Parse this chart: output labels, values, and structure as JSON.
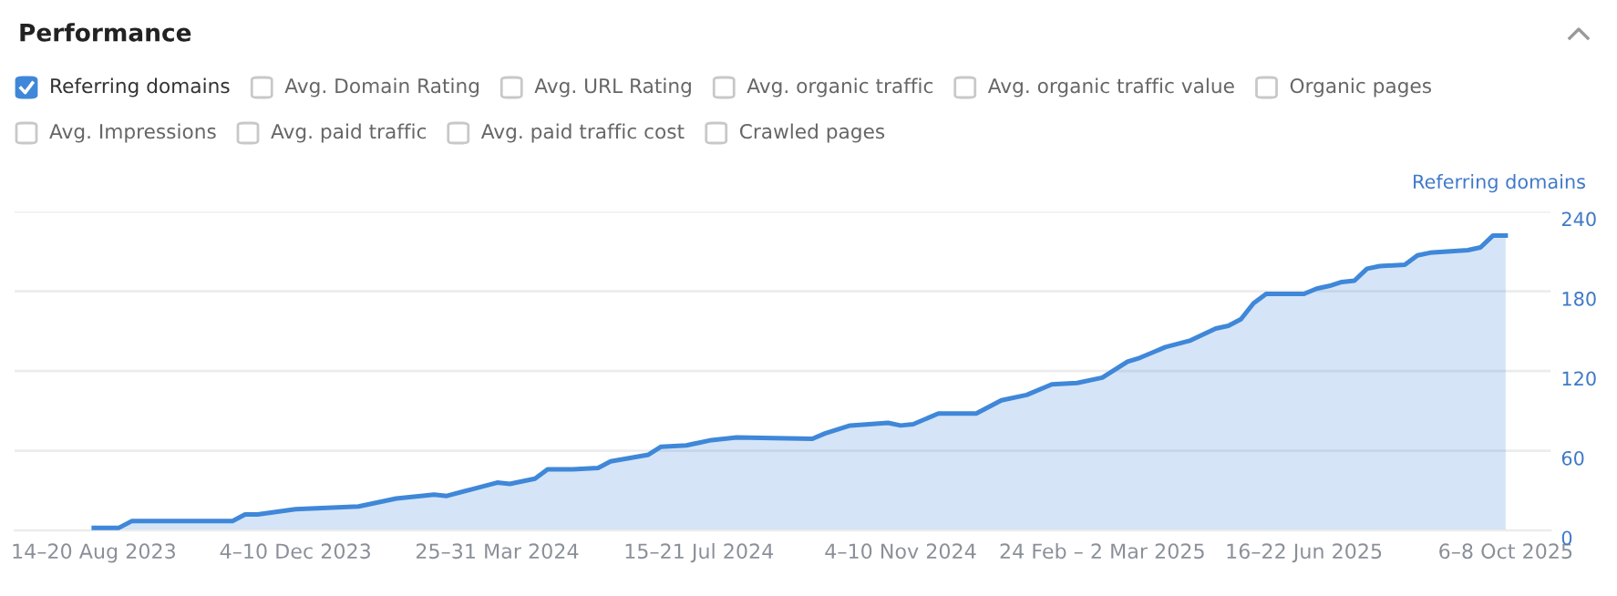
{
  "chart_data": {
    "type": "area",
    "title": "Performance",
    "ylabel": "Referring domains",
    "annotations": [
      "Avg. Domain Rating",
      "Avg. URL Rating",
      "Avg. organic traffic",
      "Avg. organic traffic value",
      "Organic pages",
      "Avg. Impressions",
      "Avg. paid traffic",
      "Avg. paid traffic cost",
      "Crawled pages"
    ],
    "x": [
      "2023-08-14",
      "2023-08-28",
      "2023-09-04",
      "2023-10-30",
      "2023-11-06",
      "2023-11-13",
      "2023-12-04",
      "2024-01-08",
      "2024-01-29",
      "2024-02-19",
      "2024-02-26",
      "2024-03-11",
      "2024-03-25",
      "2024-04-01",
      "2024-04-15",
      "2024-04-22",
      "2024-05-06",
      "2024-05-20",
      "2024-05-27",
      "2024-06-17",
      "2024-06-24",
      "2024-07-08",
      "2024-07-22",
      "2024-08-05",
      "2024-09-16",
      "2024-09-23",
      "2024-10-07",
      "2024-10-28",
      "2024-11-04",
      "2024-11-11",
      "2024-11-25",
      "2024-12-16",
      "2024-12-30",
      "2025-01-13",
      "2025-01-27",
      "2025-02-10",
      "2025-02-24",
      "2025-03-10",
      "2025-03-17",
      "2025-03-31",
      "2025-04-14",
      "2025-04-28",
      "2025-05-05",
      "2025-05-12",
      "2025-05-19",
      "2025-05-26",
      "2025-06-16",
      "2025-06-23",
      "2025-06-30",
      "2025-07-07",
      "2025-07-14",
      "2025-07-21",
      "2025-07-28",
      "2025-08-11",
      "2025-08-18",
      "2025-08-25",
      "2025-09-15",
      "2025-09-22",
      "2025-09-29",
      "2025-10-06"
    ],
    "series": [
      {
        "name": "Referring domains",
        "color": "#3f87d9",
        "values": [
          2,
          2,
          7,
          7,
          12,
          12,
          16,
          18,
          24,
          27,
          26,
          31,
          36,
          35,
          39,
          46,
          46,
          47,
          52,
          57,
          63,
          64,
          68,
          70,
          69,
          73,
          79,
          81,
          79,
          80,
          88,
          88,
          98,
          102,
          110,
          111,
          115,
          127,
          130,
          138,
          143,
          152,
          154,
          159,
          171,
          178,
          178,
          182,
          184,
          187,
          188,
          197,
          199,
          200,
          207,
          209,
          211,
          213,
          222,
          222
        ]
      }
    ],
    "xlim": [
      "2023-07-01",
      "2025-10-31"
    ],
    "xticks": [
      {
        "value": "2023-08-14",
        "label": "14–20 Aug 2023"
      },
      {
        "value": "2023-12-04",
        "label": "4–10 Dec 2023"
      },
      {
        "value": "2024-03-25",
        "label": "25–31 Mar 2024"
      },
      {
        "value": "2024-07-15",
        "label": "15–21 Jul 2024"
      },
      {
        "value": "2024-11-04",
        "label": "4–10 Nov 2024"
      },
      {
        "value": "2025-02-24",
        "label": "24 Feb – 2 Mar 2025"
      },
      {
        "value": "2025-06-16",
        "label": "16–22 Jun 2025"
      },
      {
        "value": "2025-10-06",
        "label": "6–8 Oct 2025"
      }
    ],
    "ylim": [
      0,
      240
    ],
    "yticks": [
      0,
      60,
      120,
      180,
      240
    ],
    "grid": "y",
    "legend": "top left",
    "marker": "none",
    "line_style": "solid"
  }
}
